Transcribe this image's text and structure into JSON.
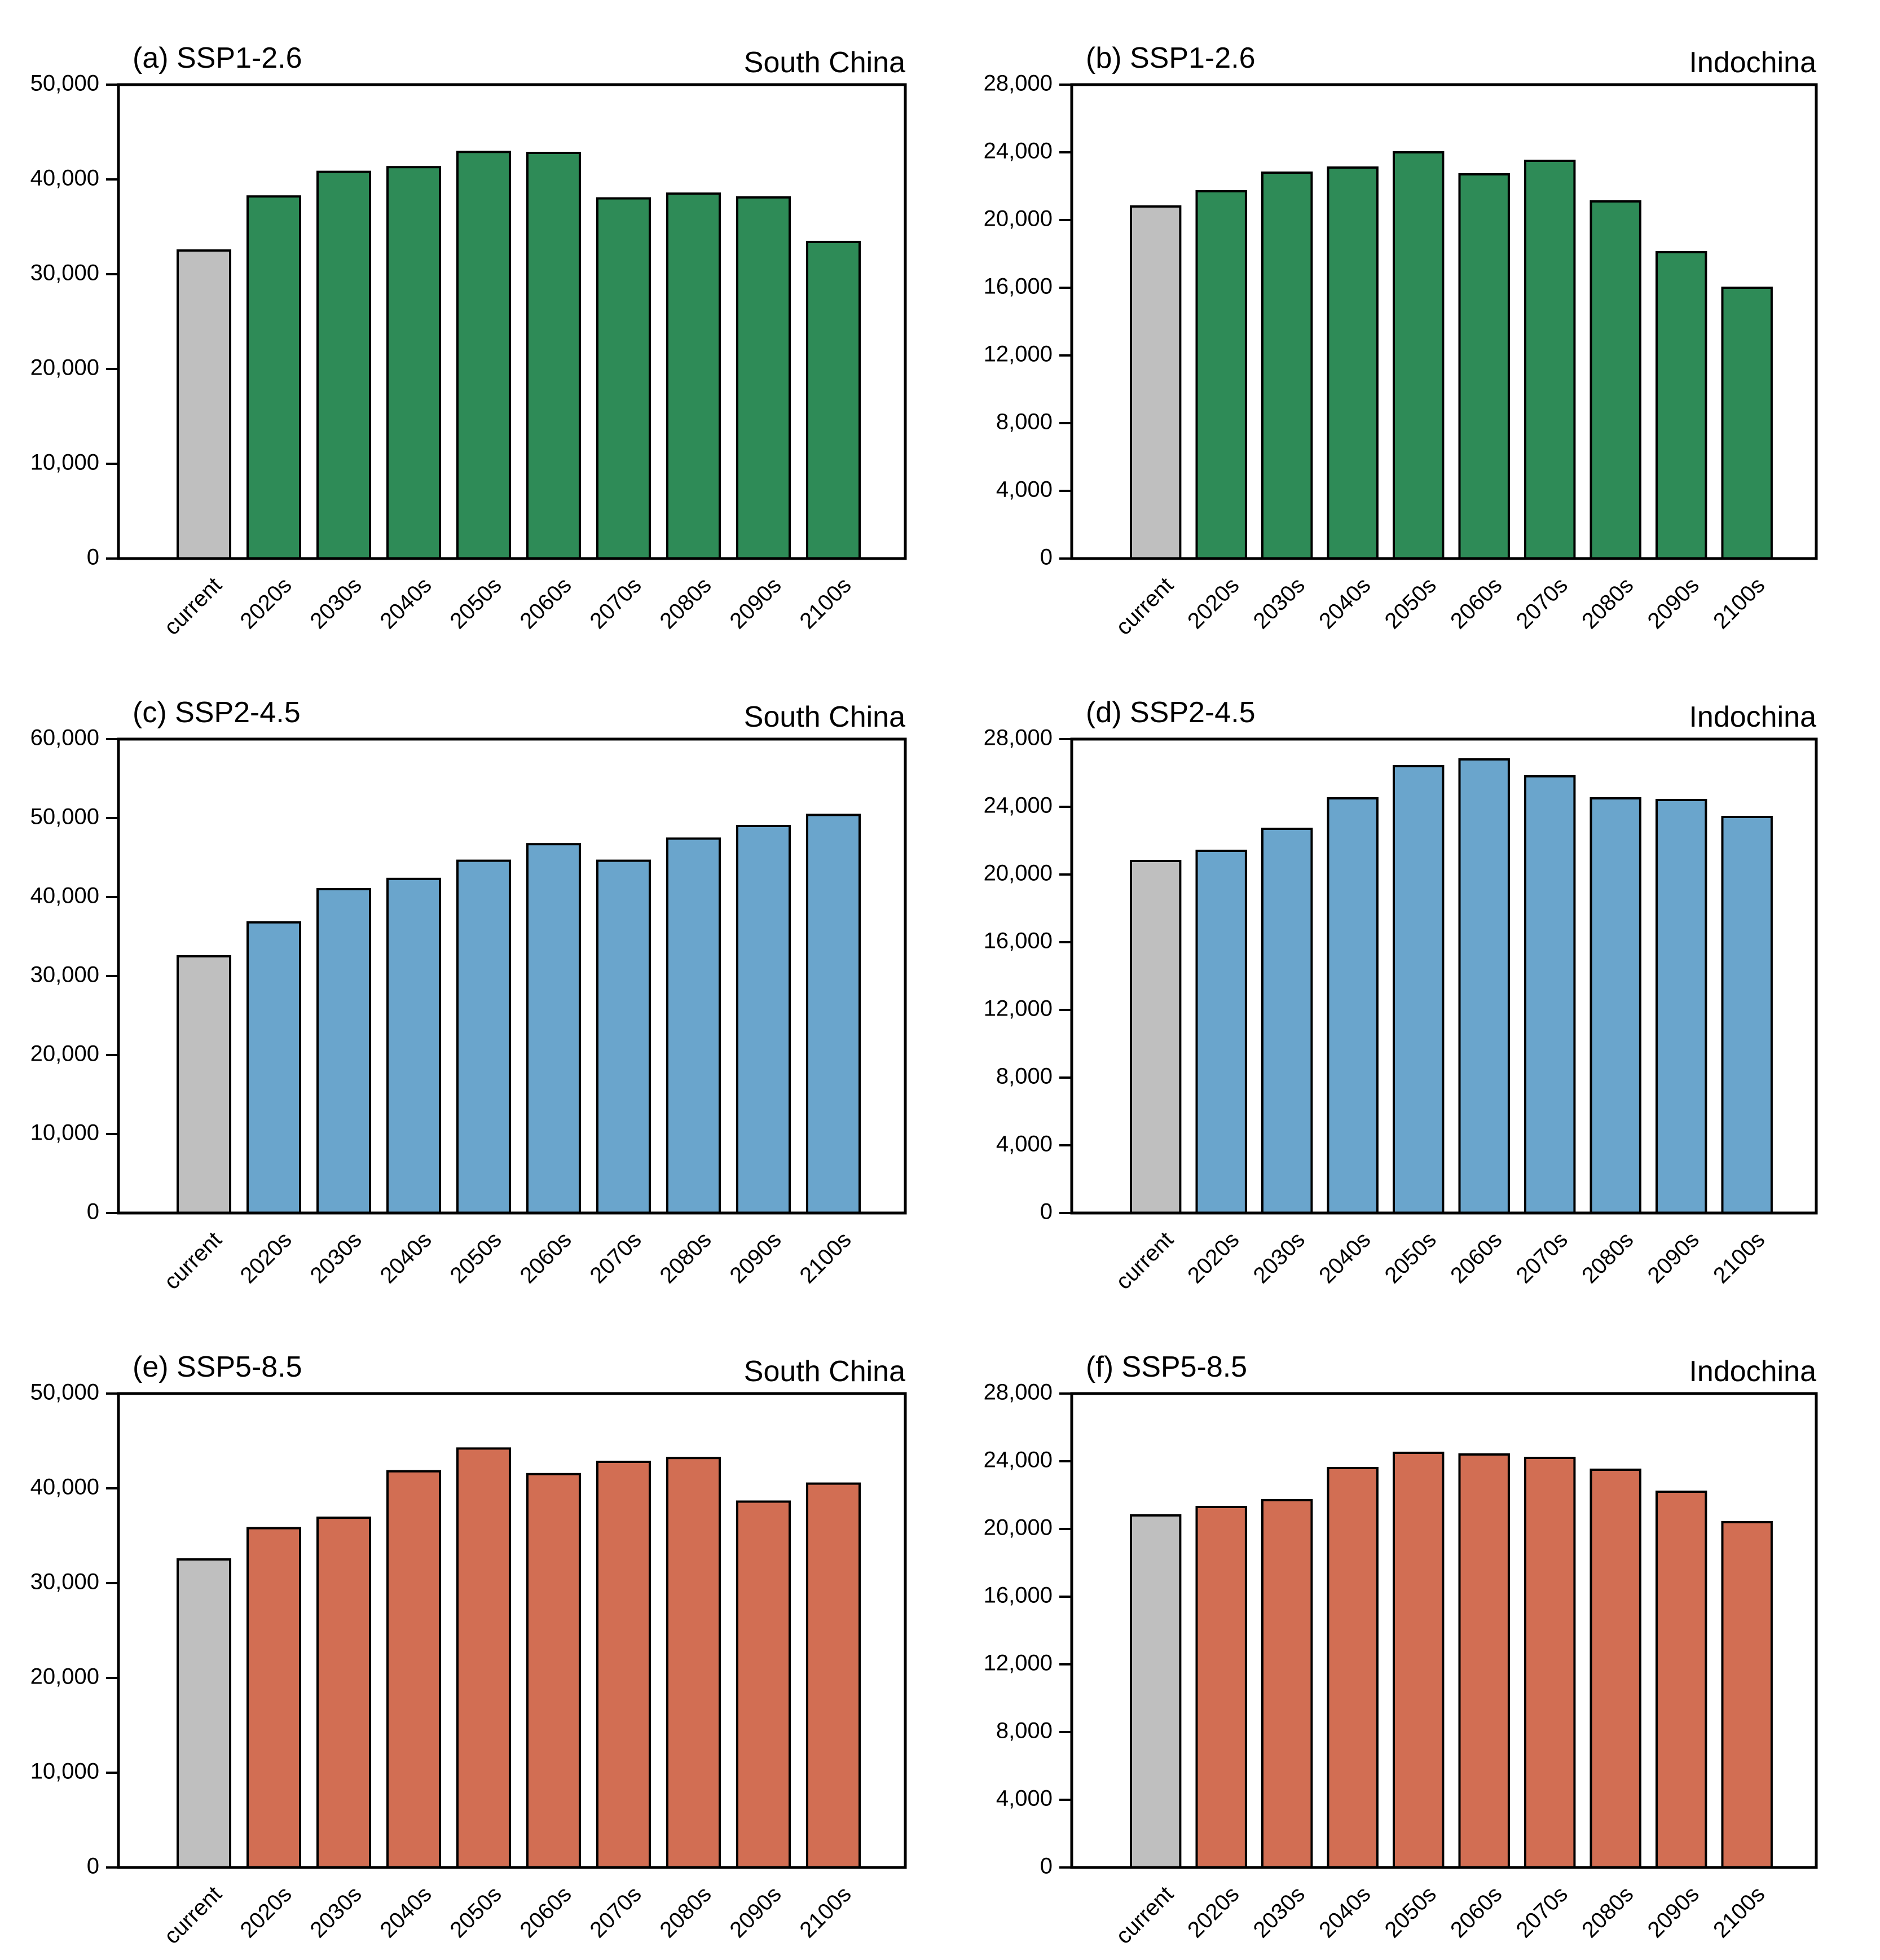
{
  "figure": {
    "colors": {
      "current": "#bfbfbf",
      "ssp126": "#2e8b57",
      "ssp245": "#6aa5cc",
      "ssp585": "#d26e53",
      "axis": "#000000"
    }
  },
  "chart_data": [
    {
      "type": "bar",
      "panel": "(a) SSP1-2.6",
      "region": "South China",
      "scenario": "ssp126",
      "categories": [
        "current",
        "2020s",
        "2030s",
        "2040s",
        "2050s",
        "2060s",
        "2070s",
        "2080s",
        "2090s",
        "2100s"
      ],
      "values": [
        32500,
        38200,
        40800,
        41300,
        42900,
        42800,
        38000,
        38500,
        38100,
        33400
      ],
      "ylim": [
        0,
        50000
      ],
      "yticks": [
        0,
        10000,
        20000,
        30000,
        40000,
        50000
      ],
      "ytick_labels": [
        "0",
        "10,000",
        "20,000",
        "30,000",
        "40,000",
        "50,000"
      ]
    },
    {
      "type": "bar",
      "panel": "(b) SSP1-2.6",
      "region": "Indochina",
      "scenario": "ssp126",
      "categories": [
        "current",
        "2020s",
        "2030s",
        "2040s",
        "2050s",
        "2060s",
        "2070s",
        "2080s",
        "2090s",
        "2100s"
      ],
      "values": [
        20800,
        21700,
        22800,
        23100,
        24000,
        22700,
        23500,
        21100,
        18100,
        16000
      ],
      "ylim": [
        0,
        28000
      ],
      "yticks": [
        0,
        4000,
        8000,
        12000,
        16000,
        20000,
        24000,
        28000
      ],
      "ytick_labels": [
        "0",
        "4,000",
        "8,000",
        "12,000",
        "16,000",
        "20,000",
        "24,000",
        "28,000"
      ]
    },
    {
      "type": "bar",
      "panel": "(c) SSP2-4.5",
      "region": "South China",
      "scenario": "ssp245",
      "categories": [
        "current",
        "2020s",
        "2030s",
        "2040s",
        "2050s",
        "2060s",
        "2070s",
        "2080s",
        "2090s",
        "2100s"
      ],
      "values": [
        32500,
        36800,
        41000,
        42300,
        44600,
        46700,
        44600,
        47400,
        49000,
        50400
      ],
      "ylim": [
        0,
        60000
      ],
      "yticks": [
        0,
        10000,
        20000,
        30000,
        40000,
        50000,
        60000
      ],
      "ytick_labels": [
        "0",
        "10,000",
        "20,000",
        "30,000",
        "40,000",
        "50,000",
        "60,000"
      ]
    },
    {
      "type": "bar",
      "panel": "(d) SSP2-4.5",
      "region": "Indochina",
      "scenario": "ssp245",
      "categories": [
        "current",
        "2020s",
        "2030s",
        "2040s",
        "2050s",
        "2060s",
        "2070s",
        "2080s",
        "2090s",
        "2100s"
      ],
      "values": [
        20800,
        21400,
        22700,
        24500,
        26400,
        26800,
        25800,
        24500,
        24400,
        23400
      ],
      "ylim": [
        0,
        28000
      ],
      "yticks": [
        0,
        4000,
        8000,
        12000,
        16000,
        20000,
        24000,
        28000
      ],
      "ytick_labels": [
        "0",
        "4,000",
        "8,000",
        "12,000",
        "16,000",
        "20,000",
        "24,000",
        "28,000"
      ]
    },
    {
      "type": "bar",
      "panel": "(e) SSP5-8.5",
      "region": "South China",
      "scenario": "ssp585",
      "categories": [
        "current",
        "2020s",
        "2030s",
        "2040s",
        "2050s",
        "2060s",
        "2070s",
        "2080s",
        "2090s",
        "2100s"
      ],
      "values": [
        32500,
        35800,
        36900,
        41800,
        44200,
        41500,
        42800,
        43200,
        38600,
        40500
      ],
      "ylim": [
        0,
        50000
      ],
      "yticks": [
        0,
        10000,
        20000,
        30000,
        40000,
        50000
      ],
      "ytick_labels": [
        "0",
        "10,000",
        "20,000",
        "30,000",
        "40,000",
        "50,000"
      ]
    },
    {
      "type": "bar",
      "panel": "(f) SSP5-8.5",
      "region": "Indochina",
      "scenario": "ssp585",
      "categories": [
        "current",
        "2020s",
        "2030s",
        "2040s",
        "2050s",
        "2060s",
        "2070s",
        "2080s",
        "2090s",
        "2100s"
      ],
      "values": [
        20800,
        21300,
        21700,
        23600,
        24500,
        24400,
        24200,
        23500,
        22200,
        20400
      ],
      "ylim": [
        0,
        28000
      ],
      "yticks": [
        0,
        4000,
        8000,
        12000,
        16000,
        20000,
        24000,
        28000
      ],
      "ytick_labels": [
        "0",
        "4,000",
        "8,000",
        "12,000",
        "16,000",
        "20,000",
        "24,000",
        "28,000"
      ]
    }
  ]
}
